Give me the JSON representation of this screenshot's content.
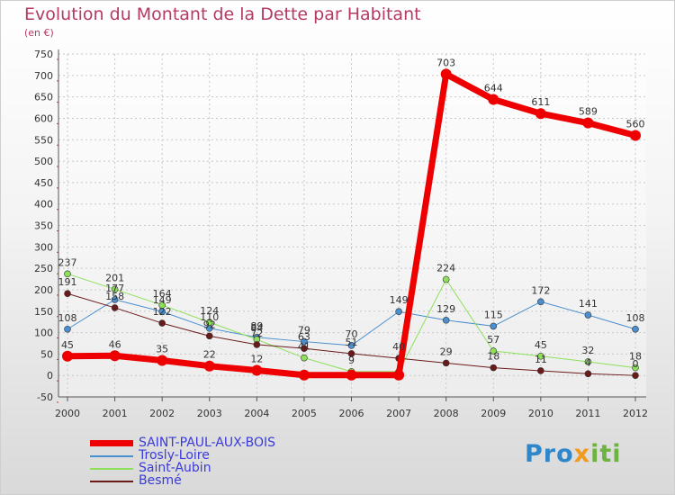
{
  "chart_data": {
    "type": "line",
    "title": "Evolution du Montant de la Dette par Habitant",
    "subtitle": "(en €)",
    "x": [
      "2000",
      "2001",
      "2002",
      "2003",
      "2004",
      "2005",
      "2006",
      "2007",
      "2008",
      "2009",
      "2010",
      "2011",
      "2012"
    ],
    "ylim": [
      -50,
      750
    ],
    "yticks": [
      -50,
      0,
      50,
      100,
      150,
      200,
      250,
      300,
      350,
      400,
      450,
      500,
      550,
      600,
      650,
      700,
      750
    ],
    "grid": true,
    "legend_position": "bottom-left",
    "series": [
      {
        "name": "SAINT-PAUL-AUX-BOIS",
        "color": "#ee0000",
        "width": 7,
        "marker": 6,
        "values": [
          45,
          46,
          35,
          22,
          12,
          1,
          1,
          1,
          703,
          644,
          611,
          589,
          560
        ],
        "labels": [
          "45",
          "46",
          "35",
          "22",
          "12",
          "",
          "",
          "",
          "703",
          "644",
          "611",
          "589",
          "560"
        ]
      },
      {
        "name": "Trosly-Loire",
        "color": "#4a8fd0",
        "width": 1,
        "marker": 3.5,
        "values": [
          108,
          177,
          149,
          110,
          89,
          79,
          70,
          149,
          129,
          115,
          172,
          141,
          108
        ],
        "labels": [
          "108",
          "177",
          "149",
          "110",
          "89",
          "79",
          "70",
          "149",
          "129",
          "115",
          "172",
          "141",
          "108"
        ]
      },
      {
        "name": "Saint-Aubin",
        "color": "#8ee05a",
        "width": 1,
        "marker": 3.5,
        "values": [
          237,
          201,
          164,
          124,
          84,
          41,
          9,
          9,
          224,
          57,
          45,
          32,
          18
        ],
        "labels": [
          "237",
          "201",
          "164",
          "124",
          "84",
          "41",
          "9",
          "",
          "224",
          "57",
          "45",
          "32",
          "18"
        ]
      },
      {
        "name": "Besmé",
        "color": "#6b1a1a",
        "width": 1,
        "marker": 3.5,
        "values": [
          191,
          158,
          122,
          92,
          72,
          63,
          51,
          40,
          29,
          18,
          11,
          4,
          0
        ],
        "labels": [
          "191",
          "158",
          "122",
          "92",
          "72",
          "63",
          "51",
          "40",
          "29",
          "18",
          "11",
          "4",
          "0"
        ]
      }
    ]
  },
  "logo": {
    "part1": "Pro",
    "part2": "x",
    "part3": "iti"
  }
}
